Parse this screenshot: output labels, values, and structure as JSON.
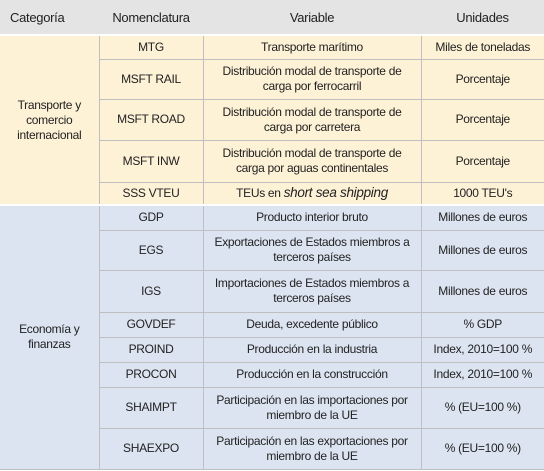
{
  "table": {
    "headers": [
      "Categoría",
      "Nomenclatura",
      "Variable",
      "Unidades"
    ],
    "groups": [
      {
        "category": "Transporte y comercio internacional",
        "rows": [
          {
            "code": "MTG",
            "variable": "Transporte marítimo",
            "unit": "Miles de toneladas"
          },
          {
            "code": "MSFT RAIL",
            "variable": "Distribución modal de transporte de carga por ferrocarril",
            "unit": "Porcentaje"
          },
          {
            "code": "MSFT ROAD",
            "variable": "Distribución modal de transporte de carga por carretera",
            "unit": "Porcentaje"
          },
          {
            "code": "MSFT INW",
            "variable": "Distribución modal de transporte de carga por aguas continentales",
            "unit": "Porcentaje"
          },
          {
            "code": "SSS VTEU",
            "variable": "TEUs en",
            "variable_emphasis": "short sea shipping",
            "unit": "1000 TEU's"
          }
        ]
      },
      {
        "category": "Economía y finanzas",
        "rows": [
          {
            "code": "GDP",
            "variable": "Producto interior bruto",
            "unit": "Millones de euros"
          },
          {
            "code": "EGS",
            "variable": "Exportaciones de Estados miembros a terceros países",
            "unit": "Millones de euros"
          },
          {
            "code": "IGS",
            "variable": "Importaciones de Estados miembros a terceros países",
            "unit": "Millones de euros"
          },
          {
            "code": "GOVDEF",
            "variable": "Deuda, excedente público",
            "unit": "% GDP"
          },
          {
            "code": "PROIND",
            "variable": "Producción en la industria",
            "unit": "Index, 2010=100 %"
          },
          {
            "code": "PROCON",
            "variable": "Producción en la construcción",
            "unit": "Index, 2010=100 %"
          },
          {
            "code": "SHAIMPT",
            "variable": "Participación en las importaciones por miembro de la UE",
            "unit": "% (EU=100 %)"
          },
          {
            "code": "SHAEXPO",
            "variable": "Participación en las exportaciones por miembro de la UE",
            "unit": "% (EU=100 %)"
          }
        ]
      }
    ]
  }
}
